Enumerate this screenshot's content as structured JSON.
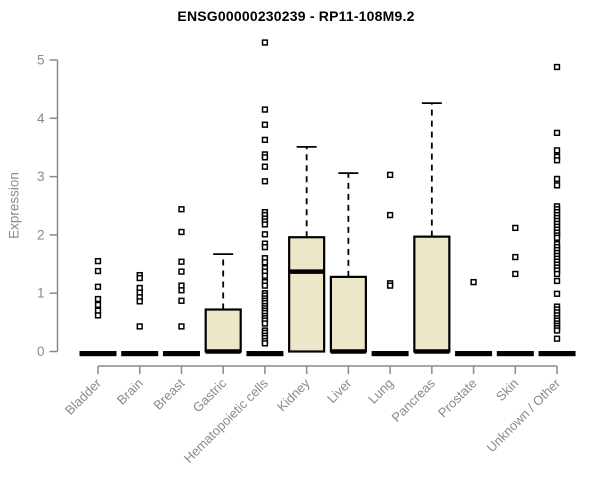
{
  "chart_data": {
    "type": "boxplot",
    "title": "ENSG00000230239 - RP11-108M9.2",
    "ylabel": "Expression",
    "xlabel": "",
    "ylim": [
      0,
      5.4
    ],
    "yticks": [
      0,
      1,
      2,
      3,
      4,
      5
    ],
    "grid": false,
    "legend": false,
    "categories": [
      "Bladder",
      "Brain",
      "Breast",
      "Gastric",
      "Hematopoietic cells",
      "Kidney",
      "Liver",
      "Lung",
      "Pancreas",
      "Prostate",
      "Skin",
      "Unknown / Other"
    ],
    "boxes": [
      {
        "label": "Bladder",
        "collapsed": true,
        "q1": 0,
        "median": 0,
        "q3": 0,
        "whisker_low": 0,
        "whisker_high": 0,
        "outliers": [
          1.55,
          1.38,
          1.11,
          0.9,
          0.8,
          0.7,
          0.62
        ]
      },
      {
        "label": "Brain",
        "collapsed": true,
        "q1": 0,
        "median": 0,
        "q3": 0,
        "whisker_low": 0,
        "whisker_high": 0,
        "outliers": [
          1.31,
          1.26,
          1.09,
          1.01,
          0.93,
          0.86,
          0.43
        ]
      },
      {
        "label": "Breast",
        "collapsed": true,
        "q1": 0,
        "median": 0,
        "q3": 0,
        "whisker_low": 0,
        "whisker_high": 0,
        "outliers": [
          2.44,
          2.05,
          1.54,
          1.37,
          1.13,
          1.05,
          0.87,
          0.43
        ]
      },
      {
        "label": "Gastric",
        "collapsed": false,
        "q1": 0,
        "median": 0,
        "q3": 0.72,
        "whisker_low": 0,
        "whisker_high": 1.67,
        "outliers": []
      },
      {
        "label": "Hematopoietic cells",
        "collapsed": true,
        "q1": 0,
        "median": 0,
        "q3": 0,
        "whisker_low": 0,
        "whisker_high": 0,
        "outliers": [
          5.3,
          4.15,
          3.89,
          3.63,
          3.38,
          3.33,
          3.17,
          2.92,
          2.39,
          2.34,
          2.28,
          2.23,
          2.18,
          2.01,
          1.85,
          1.79,
          1.6,
          1.53,
          1.43,
          1.37,
          1.3,
          1.19,
          1.13,
          1.0,
          0.96,
          0.91,
          0.87,
          0.83,
          0.78,
          0.74,
          0.7,
          0.66,
          0.61,
          0.57,
          0.53,
          0.48,
          0.36,
          0.32,
          0.27,
          0.23,
          0.18,
          0.14
        ]
      },
      {
        "label": "Kidney",
        "collapsed": false,
        "q1": 0,
        "median": 1.37,
        "q3": 1.96,
        "whisker_low": 0,
        "whisker_high": 3.51,
        "outliers": []
      },
      {
        "label": "Liver",
        "collapsed": false,
        "q1": 0,
        "median": 0,
        "q3": 1.28,
        "whisker_low": 0,
        "whisker_high": 3.06,
        "outliers": []
      },
      {
        "label": "Lung",
        "collapsed": true,
        "q1": 0,
        "median": 0,
        "q3": 0,
        "whisker_low": 0,
        "whisker_high": 0,
        "outliers": [
          3.03,
          2.34,
          1.17,
          1.13
        ]
      },
      {
        "label": "Pancreas",
        "collapsed": false,
        "q1": 0,
        "median": 0,
        "q3": 1.97,
        "whisker_low": 0,
        "whisker_high": 4.26,
        "outliers": []
      },
      {
        "label": "Prostate",
        "collapsed": true,
        "q1": 0,
        "median": 0,
        "q3": 0,
        "whisker_low": 0,
        "whisker_high": 0,
        "outliers": [
          1.19
        ]
      },
      {
        "label": "Skin",
        "collapsed": true,
        "q1": 0,
        "median": 0,
        "q3": 0,
        "whisker_low": 0,
        "whisker_high": 0,
        "outliers": [
          2.12,
          1.62,
          1.33
        ]
      },
      {
        "label": "Unknown / Other",
        "collapsed": true,
        "q1": 0,
        "median": 0,
        "q3": 0,
        "whisker_low": 0,
        "whisker_high": 0,
        "outliers": [
          4.88,
          3.75,
          3.45,
          3.34,
          3.28,
          2.96,
          2.85,
          2.49,
          2.44,
          2.39,
          2.34,
          2.29,
          2.24,
          2.19,
          2.14,
          2.09,
          2.04,
          1.99,
          1.95,
          1.84,
          1.79,
          1.74,
          1.69,
          1.64,
          1.59,
          1.54,
          1.49,
          1.44,
          1.39,
          1.33,
          1.21,
          0.99,
          0.77,
          0.72,
          0.67,
          0.62,
          0.57,
          0.53,
          0.48,
          0.44,
          0.4,
          0.36,
          0.22
        ]
      }
    ],
    "colors": {
      "box_fill": "#EDE7C9",
      "box_stroke": "#000000",
      "outlier": "#000000",
      "axis": "#8a8a8a",
      "text": "#8a8a8a",
      "title_text": "#000000",
      "background": "#ffffff"
    }
  }
}
